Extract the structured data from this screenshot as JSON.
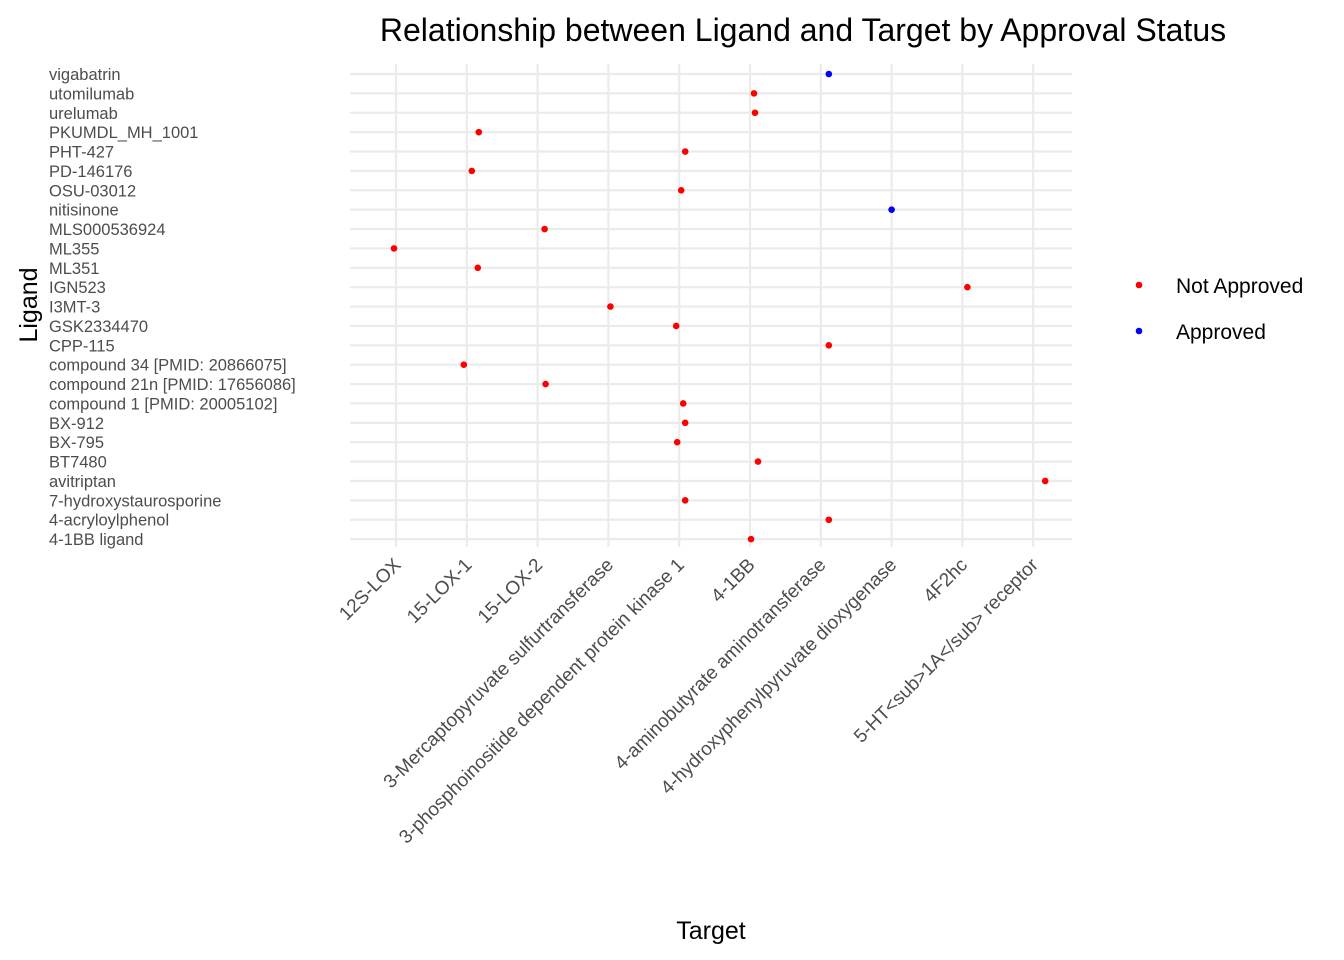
{
  "chart_data": {
    "type": "scatter",
    "title": "Relationship between Ligand and Target by Approval Status",
    "xlabel": "Target",
    "ylabel": "Ligand",
    "grid": true,
    "legend_position": "right",
    "x_categories": [
      "12S-LOX",
      "15-LOX-1",
      "15-LOX-2",
      "3-Mercaptopyruvate sulfurtransferase",
      "3-phosphoinositide dependent protein kinase 1",
      "4-1BB",
      "4-aminobutyrate aminotransferase",
      "4-hydroxyphenylpyruvate dioxygenase",
      "4F2hc",
      "5-HT<sub>1A</sub> receptor"
    ],
    "y_categories_top_to_bottom": [
      "vigabatrin",
      "utomilumab",
      "urelumab",
      "PKUMDL_MH_1001",
      "PHT-427",
      "PD-146176",
      "OSU-03012",
      "nitisinone",
      "MLS000536924",
      "ML355",
      "ML351",
      "IGN523",
      "I3MT-3",
      "GSK2334470",
      "CPP-115",
      "compound 34 [PMID: 20866075]",
      "compound 21n [PMID: 17656086]",
      "compound 1 [PMID: 20005102]",
      "BX-912",
      "BX-795",
      "BT7480",
      "avitriptan",
      "7-hydroxystaurosporine",
      "4-acryloylphenol",
      "4-1BB ligand"
    ],
    "series": [
      {
        "name": "Not Approved",
        "color": "#ff0000",
        "points": [
          {
            "ligand": "utomilumab",
            "target": "4-1BB"
          },
          {
            "ligand": "urelumab",
            "target": "4-1BB"
          },
          {
            "ligand": "PKUMDL_MH_1001",
            "target": "15-LOX-1"
          },
          {
            "ligand": "PHT-427",
            "target": "3-phosphoinositide dependent protein kinase 1"
          },
          {
            "ligand": "PD-146176",
            "target": "15-LOX-1"
          },
          {
            "ligand": "OSU-03012",
            "target": "3-phosphoinositide dependent protein kinase 1"
          },
          {
            "ligand": "MLS000536924",
            "target": "15-LOX-2"
          },
          {
            "ligand": "ML355",
            "target": "12S-LOX"
          },
          {
            "ligand": "ML351",
            "target": "15-LOX-1"
          },
          {
            "ligand": "IGN523",
            "target": "4F2hc"
          },
          {
            "ligand": "I3MT-3",
            "target": "3-Mercaptopyruvate sulfurtransferase"
          },
          {
            "ligand": "GSK2334470",
            "target": "3-phosphoinositide dependent protein kinase 1"
          },
          {
            "ligand": "CPP-115",
            "target": "4-aminobutyrate aminotransferase"
          },
          {
            "ligand": "compound 34 [PMID: 20866075]",
            "target": "15-LOX-1"
          },
          {
            "ligand": "compound 21n [PMID: 17656086]",
            "target": "15-LOX-2"
          },
          {
            "ligand": "compound 1 [PMID: 20005102]",
            "target": "3-phosphoinositide dependent protein kinase 1"
          },
          {
            "ligand": "BX-912",
            "target": "3-phosphoinositide dependent protein kinase 1"
          },
          {
            "ligand": "BX-795",
            "target": "3-phosphoinositide dependent protein kinase 1"
          },
          {
            "ligand": "BT7480",
            "target": "4-1BB"
          },
          {
            "ligand": "avitriptan",
            "target": "5-HT<sub>1A</sub> receptor"
          },
          {
            "ligand": "7-hydroxystaurosporine",
            "target": "3-phosphoinositide dependent protein kinase 1"
          },
          {
            "ligand": "4-acryloylphenol",
            "target": "4-aminobutyrate aminotransferase"
          },
          {
            "ligand": "4-1BB ligand",
            "target": "4-1BB"
          }
        ]
      },
      {
        "name": "Approved",
        "color": "#0000ff",
        "points": [
          {
            "ligand": "vigabatrin",
            "target": "4-aminobutyrate aminotransferase"
          },
          {
            "ligand": "nitisinone",
            "target": "4-hydroxyphenylpyruvate dioxygenase"
          }
        ]
      }
    ]
  }
}
